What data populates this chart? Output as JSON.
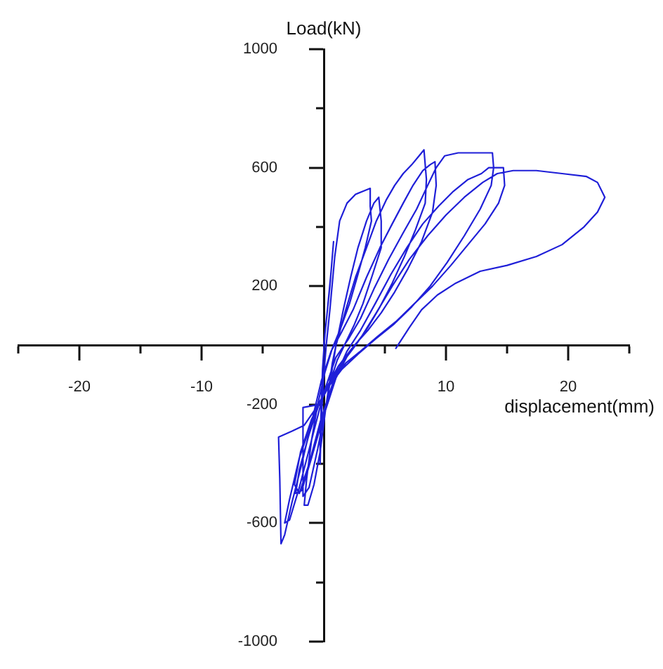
{
  "chart_data": {
    "type": "line",
    "xlabel": "displacement(mm)",
    "ylabel": "Load(kN)",
    "color": "#1f1fd8",
    "grid": false,
    "legend": false,
    "xlim": [
      -25,
      25
    ],
    "ylim": [
      -1000,
      1000
    ],
    "xticks": [
      {
        "value": -25,
        "label": null
      },
      -20,
      {
        "value": -15,
        "label": null
      },
      -10,
      {
        "value": -5,
        "label": null
      },
      {
        "value": 5,
        "label": null
      },
      10,
      {
        "value": 15,
        "label": null
      },
      20,
      {
        "value": 25,
        "label": null
      }
    ],
    "yticks": [
      -1000,
      {
        "value": -800,
        "label": null
      },
      -600,
      {
        "value": -400,
        "label": null
      },
      -200,
      200,
      {
        "value": 400,
        "label": null
      },
      600,
      {
        "value": 800,
        "label": null
      },
      1000
    ],
    "x": [
      0,
      0.3,
      0.6,
      0.8,
      0.5,
      0.1,
      -0.1,
      -0.2,
      -0.3,
      -0.3,
      -0.2,
      0,
      0.2,
      0.5,
      0.9,
      1.3,
      1.9,
      2.6,
      3.2,
      3.8,
      3.8,
      3.9,
      3.4,
      2.8,
      2.1,
      1.4,
      0.7,
      0.1,
      -0.5,
      -1.0,
      -1.4,
      -1.6,
      -1.3,
      -0.8,
      -0.3,
      0.2,
      0.7,
      1.1,
      1.6,
      2.2,
      2.8,
      3.5,
      4.1,
      4.5,
      4.7,
      4.7,
      4.0,
      3.2,
      2.5,
      1.8,
      1.1,
      0.4,
      -0.4,
      -1.7,
      -1.7,
      -1.2,
      -0.5,
      0.3,
      1.0,
      1.8,
      2.6,
      3.5,
      4.3,
      5.1,
      5.8,
      6.5,
      7.2,
      7.8,
      8.2,
      8.4,
      8.3,
      7.5,
      6.6,
      5.6,
      4.6,
      3.6,
      2.6,
      1.5,
      0.5,
      -0.6,
      -1.6,
      -2.6,
      -3.7,
      -3.6,
      -3.5,
      -3.2,
      -2.6,
      -1.8,
      -1.0,
      -0.2,
      0.6,
      1.4,
      2.4,
      3.5,
      4.6,
      5.6,
      6.5,
      7.3,
      8.1,
      8.7,
      9.1,
      9.2,
      8.9,
      8.0,
      6.9,
      5.8,
      4.7,
      3.6,
      2.5,
      1.2,
      0,
      -1.0,
      -2.0,
      -2.8,
      -3.2,
      -2.8,
      -2.0,
      -1.0,
      0,
      1.0,
      2.0,
      3.0,
      4.1,
      5.3,
      6.5,
      7.6,
      8.5,
      9.2,
      9.9,
      11.0,
      12.5,
      13.8,
      13.9,
      13.7,
      12.8,
      11.5,
      10.1,
      8.7,
      7.2,
      5.7,
      4.2,
      2.8,
      1.5,
      0.2,
      -1.0,
      -1.9,
      -2.4,
      -2.0,
      -1.2,
      -0.3,
      0.8,
      1.9,
      3.0,
      4.2,
      5.5,
      6.8,
      8.1,
      9.4,
      10.6,
      11.8,
      12.9,
      13.5,
      14.7,
      14.8,
      14.3,
      13.2,
      11.8,
      10.4,
      8.9,
      7.4,
      5.9,
      4.4,
      3.0,
      1.8,
      0.6,
      -0.4,
      -1.2,
      -2.0,
      -2.3,
      -1.8,
      -1.0,
      -0.1,
      1.0,
      2.0,
      3.1,
      4.3,
      5.6,
      7.0,
      8.5,
      10.0,
      11.5,
      13.0,
      14.2,
      15.5,
      17.4,
      19.5,
      21.5,
      22.4,
      23.0,
      22.4,
      21.3,
      19.5,
      17.4,
      15.0,
      12.8,
      10.8,
      9.3,
      8.0,
      7.0,
      5.9
    ],
    "values": [
      0,
      120,
      250,
      350,
      200,
      40,
      -80,
      -200,
      -320,
      -400,
      -250,
      -100,
      0,
      120,
      300,
      420,
      480,
      510,
      520,
      530,
      470,
      420,
      330,
      240,
      140,
      60,
      -10,
      -90,
      -200,
      -320,
      -450,
      -540,
      -540,
      -470,
      -360,
      -200,
      -60,
      20,
      120,
      230,
      330,
      420,
      480,
      500,
      420,
      330,
      240,
      140,
      70,
      10,
      -50,
      -140,
      -200,
      -210,
      -510,
      -480,
      -350,
      -180,
      0,
      120,
      230,
      330,
      420,
      490,
      540,
      580,
      610,
      640,
      660,
      560,
      480,
      390,
      300,
      210,
      130,
      60,
      0,
      -60,
      -130,
      -210,
      -270,
      -290,
      -310,
      -450,
      -670,
      -640,
      -530,
      -400,
      -260,
      -120,
      -20,
      40,
      120,
      230,
      330,
      410,
      480,
      540,
      590,
      610,
      620,
      540,
      450,
      350,
      260,
      180,
      110,
      50,
      0,
      -70,
      -160,
      -260,
      -380,
      -520,
      -600,
      -590,
      -480,
      -320,
      -160,
      -40,
      20,
      90,
      190,
      290,
      380,
      460,
      540,
      600,
      640,
      650,
      650,
      650,
      600,
      540,
      460,
      370,
      280,
      200,
      130,
      70,
      20,
      -30,
      -80,
      -150,
      -250,
      -360,
      -470,
      -500,
      -400,
      -260,
      -120,
      -20,
      50,
      140,
      240,
      330,
      410,
      470,
      520,
      560,
      580,
      600,
      600,
      540,
      480,
      410,
      340,
      270,
      200,
      140,
      80,
      30,
      -20,
      -60,
      -120,
      -200,
      -300,
      -420,
      -500,
      -490,
      -380,
      -250,
      -110,
      -30,
      30,
      110,
      200,
      290,
      370,
      440,
      500,
      550,
      580,
      590,
      590,
      580,
      570,
      550,
      500,
      450,
      400,
      340,
      300,
      270,
      250,
      210,
      170,
      120,
      60,
      -10
    ]
  }
}
